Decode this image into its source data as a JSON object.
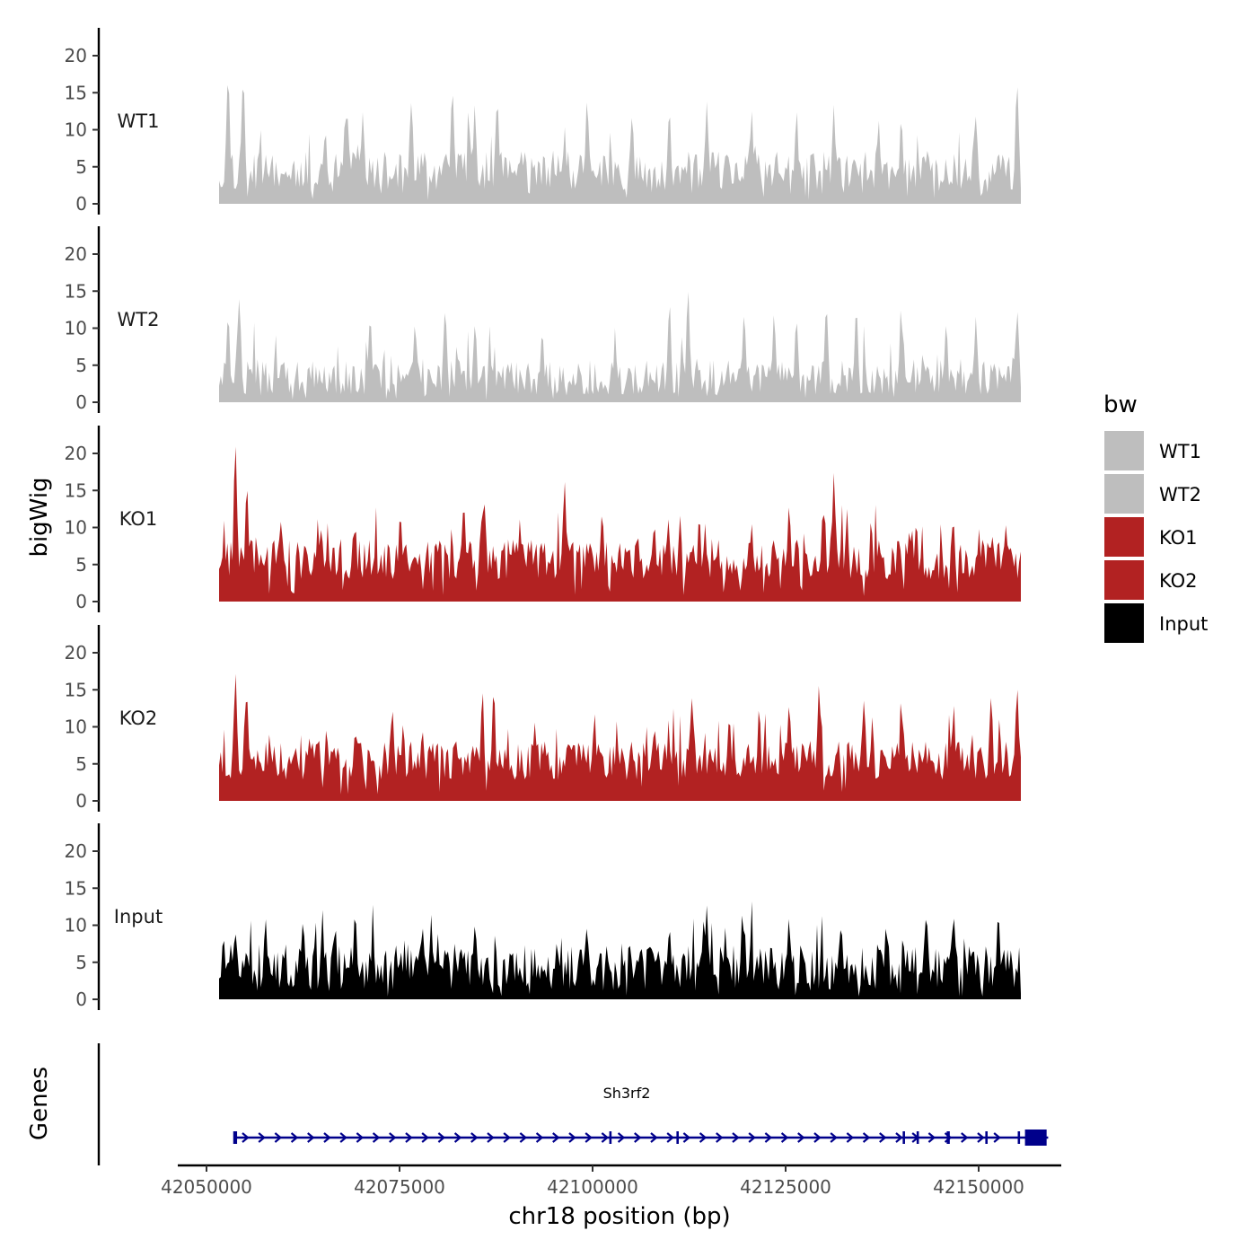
{
  "chart_data": {
    "type": "area",
    "title": "",
    "ylabel": "bigWig",
    "xlabel": "chr18 position (bp)",
    "genes_label": "Genes",
    "ylim": [
      0,
      24
    ],
    "yticks": [
      0,
      5,
      10,
      15,
      20
    ],
    "xlim": [
      42051800,
      42159000
    ],
    "xticks": [
      42050000,
      42075000,
      42100000,
      42125000,
      42150000
    ],
    "xtick_labels": [
      "42050000",
      "42075000",
      "42100000",
      "42125000",
      "42150000"
    ],
    "legend": {
      "title": "bw",
      "position": "right",
      "entries": [
        {
          "label": "WT1",
          "color": "#bebebe"
        },
        {
          "label": "WT2",
          "color": "#bebebe"
        },
        {
          "label": "KO1",
          "color": "#b22222"
        },
        {
          "label": "KO2",
          "color": "#b22222"
        },
        {
          "label": "Input",
          "color": "#000000"
        }
      ]
    },
    "series": [
      {
        "name": "WT1",
        "color": "#bebebe",
        "baseline": 4.2,
        "noise": 2.6,
        "seed": 11,
        "peaks": [
          [
            42053000,
            19.5
          ],
          [
            42055000,
            18.8
          ],
          [
            42066000,
            10.5
          ],
          [
            42069000,
            11.5
          ],
          [
            42071000,
            12.5
          ],
          [
            42077500,
            16.0
          ],
          [
            42083000,
            16.5
          ],
          [
            42086000,
            13.5
          ],
          [
            42089000,
            15.0
          ],
          [
            42101000,
            14.5
          ],
          [
            42107000,
            13.0
          ],
          [
            42112000,
            13.5
          ],
          [
            42117000,
            14.5
          ],
          [
            42123000,
            13.0
          ],
          [
            42129000,
            13.0
          ],
          [
            42134000,
            13.5
          ],
          [
            42140000,
            11.5
          ],
          [
            42143000,
            12.0
          ],
          [
            42153000,
            12.5
          ],
          [
            42158500,
            18.5
          ]
        ]
      },
      {
        "name": "WT2",
        "color": "#bebebe",
        "baseline": 3.2,
        "noise": 2.4,
        "seed": 23,
        "peaks": [
          [
            42053000,
            12.5
          ],
          [
            42054500,
            16.0
          ],
          [
            42072000,
            13.0
          ],
          [
            42078000,
            12.0
          ],
          [
            42082000,
            13.5
          ],
          [
            42086000,
            12.0
          ],
          [
            42095000,
            10.5
          ],
          [
            42112000,
            14.0
          ],
          [
            42114500,
            15.5
          ],
          [
            42122000,
            12.5
          ],
          [
            42126000,
            12.5
          ],
          [
            42129000,
            12.5
          ],
          [
            42133000,
            13.5
          ],
          [
            42137000,
            13.0
          ],
          [
            42143000,
            13.5
          ],
          [
            42149000,
            11.0
          ],
          [
            42153000,
            12.0
          ],
          [
            42158500,
            12.5
          ]
        ]
      },
      {
        "name": "KO1",
        "color": "#b22222",
        "baseline": 5.5,
        "noise": 2.8,
        "seed": 37,
        "peaks": [
          [
            42054000,
            22.5
          ],
          [
            42055500,
            17.5
          ],
          [
            42060000,
            11.5
          ],
          [
            42065000,
            10.5
          ],
          [
            42070000,
            11.0
          ],
          [
            42076000,
            13.0
          ],
          [
            42084500,
            15.0
          ],
          [
            42087000,
            14.0
          ],
          [
            42098000,
            16.5
          ],
          [
            42103000,
            13.0
          ],
          [
            42110000,
            12.0
          ],
          [
            42116000,
            12.5
          ],
          [
            42123000,
            12.0
          ],
          [
            42128000,
            13.5
          ],
          [
            42134000,
            19.0
          ],
          [
            42139000,
            12.0
          ],
          [
            42145000,
            12.0
          ],
          [
            42150000,
            11.5
          ],
          [
            42157000,
            12.0
          ]
        ]
      },
      {
        "name": "KO2",
        "color": "#b22222",
        "baseline": 5.2,
        "noise": 2.7,
        "seed": 53,
        "peaks": [
          [
            42054000,
            18.0
          ],
          [
            42055500,
            16.5
          ],
          [
            42062000,
            8.5
          ],
          [
            42070000,
            10.0
          ],
          [
            42075000,
            12.5
          ],
          [
            42079000,
            11.0
          ],
          [
            42087000,
            16.0
          ],
          [
            42088500,
            15.0
          ],
          [
            42094000,
            12.0
          ],
          [
            42102000,
            12.0
          ],
          [
            42110000,
            11.0
          ],
          [
            42115000,
            16.0
          ],
          [
            42120000,
            12.0
          ],
          [
            42124000,
            13.5
          ],
          [
            42128000,
            14.0
          ],
          [
            42132000,
            17.0
          ],
          [
            42138000,
            15.5
          ],
          [
            42143000,
            14.5
          ],
          [
            42150000,
            13.5
          ],
          [
            42155000,
            16.0
          ],
          [
            42158500,
            17.5
          ]
        ]
      },
      {
        "name": "Input",
        "color": "#000000",
        "baseline": 4.0,
        "noise": 3.2,
        "seed": 71,
        "peaks": [
          [
            42054000,
            9.5
          ],
          [
            42058000,
            11.5
          ],
          [
            42063000,
            11.5
          ],
          [
            42070000,
            12.5
          ],
          [
            42079000,
            10.5
          ],
          [
            42086000,
            11.0
          ],
          [
            42101000,
            10.5
          ],
          [
            42112000,
            10.0
          ],
          [
            42117000,
            13.5
          ],
          [
            42122000,
            10.5
          ],
          [
            42128000,
            11.5
          ],
          [
            42135000,
            10.5
          ],
          [
            42141000,
            11.0
          ],
          [
            42150000,
            13.0
          ],
          [
            42156000,
            12.5
          ]
        ]
      }
    ],
    "gene": {
      "name": "Sh3rf2",
      "color": "#00008b",
      "strand": "+",
      "start": 42053600,
      "end": 42159000,
      "exons": [
        [
          42053600,
          42054100
        ],
        [
          42102300,
          42102600
        ],
        [
          42111000,
          42111300
        ],
        [
          42140300,
          42140600
        ],
        [
          42142100,
          42142400
        ],
        [
          42146000,
          42146400
        ],
        [
          42151000,
          42151300
        ],
        [
          42155200,
          42155500
        ],
        [
          42156000,
          42158800
        ]
      ]
    }
  }
}
